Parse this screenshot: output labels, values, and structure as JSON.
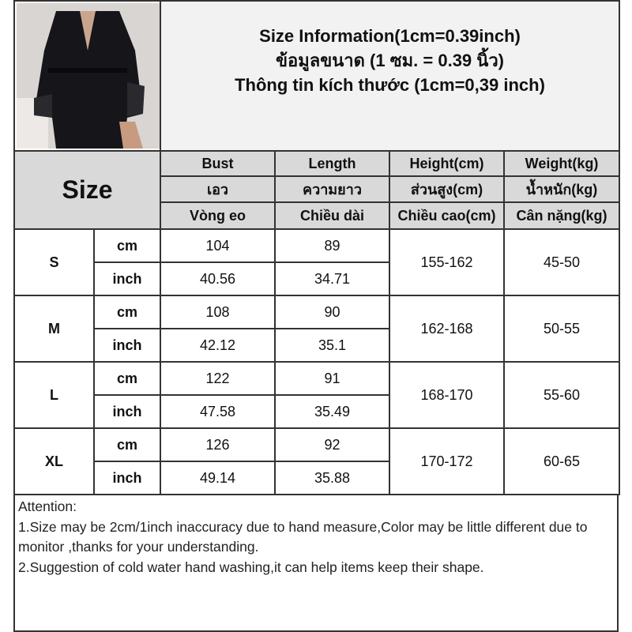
{
  "header": {
    "lines": [
      "Size Information(1cm=0.39inch)",
      "ข้อมูลขนาด (1 ซม. = 0.39 นิ้ว)",
      "Thông tin kích thước (1cm=0,39 inch)"
    ]
  },
  "size_label": "Size",
  "columns": [
    [
      "Bust",
      "เอว",
      "Vòng eo"
    ],
    [
      "Length",
      "ความยาว",
      "Chiều dài"
    ],
    [
      "Height(cm)",
      "ส่วนสูง(cm)",
      "Chiều cao(cm)"
    ],
    [
      "Weight(kg)",
      "น้ำหนัก(kg)",
      "Cân nặng(kg)"
    ]
  ],
  "rows": [
    {
      "size": "S",
      "cm_label": "cm",
      "inch_label": "inch",
      "bust_cm": "104",
      "length_cm": "89",
      "bust_in": "40.56",
      "length_in": "34.71",
      "height": "155-162",
      "weight": "45-50"
    },
    {
      "size": "M",
      "cm_label": "cm",
      "inch_label": "inch",
      "bust_cm": "108",
      "length_cm": "90",
      "bust_in": "42.12",
      "length_in": "35.1",
      "height": "162-168",
      "weight": "50-55"
    },
    {
      "size": "L",
      "cm_label": "cm",
      "inch_label": "inch",
      "bust_cm": "122",
      "length_cm": "91",
      "bust_in": "47.58",
      "length_in": "35.49",
      "height": "168-170",
      "weight": "55-60"
    },
    {
      "size": "XL",
      "cm_label": "cm",
      "inch_label": "inch",
      "bust_cm": "126",
      "length_cm": "92",
      "bust_in": "49.14",
      "length_in": "35.88",
      "height": "170-172",
      "weight": "60-65"
    }
  ],
  "notes": {
    "title": "Attention:",
    "items": [
      "1.Size may be 2cm/1inch inaccuracy due to hand measure,Color may be little different due to monitor ,thanks for your understanding.",
      "2.Suggestion of cold water hand washing,it can help items keep their shape."
    ]
  }
}
